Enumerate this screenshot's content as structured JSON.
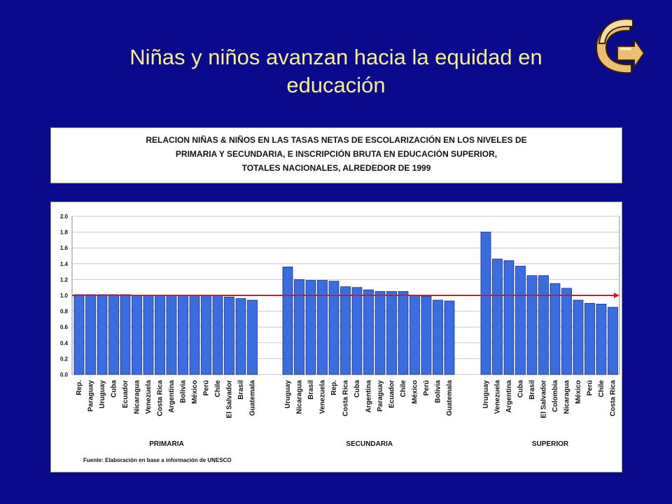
{
  "slide": {
    "title_line1": "Niñas y niños avanzan hacia la equidad en",
    "title_line2": "educación",
    "title_color": "#f7f08a",
    "background": "#0a0a8c",
    "logo_icon": "curved-arrow-logo-icon"
  },
  "chart_title": {
    "line1": "RELACION NIÑAS & NIÑOS EN LAS TASAS NETAS DE ESCOLARIZACIÓN EN LOS NIVELES DE",
    "line2": "PRIMARIA Y SECUNDARIA, E INSCRIPCIÓN BRUTA EN EDUCACIÓN SUPERIOR,",
    "line3": "TOTALES NACIONALES, ALREDEDOR DE 1999"
  },
  "chart_data": {
    "type": "bar",
    "title": "RELACION NIÑAS & NIÑOS EN LAS TASAS NETAS DE ESCOLARIZACIÓN EN LOS NIVELES DE PRIMARIA Y SECUNDARIA, E INSCRIPCIÓN BRUTA EN EDUCACIÓN SUPERIOR, TOTALES NACIONALES, ALREDEDOR DE 1999",
    "ylim": [
      0,
      2.0
    ],
    "yticks": [
      "0.0",
      "0.2",
      "0.4",
      "0.6",
      "0.8",
      "1.0",
      "1.2",
      "1.4",
      "1.6",
      "1.8",
      "2.0"
    ],
    "grid": true,
    "bar_color": "#3a6ee0",
    "reference_line": {
      "value": 1.0,
      "color": "#e81010"
    },
    "groups": [
      {
        "name": "PRIMARIA",
        "categories": [
          "Rep.",
          "Paraguay",
          "Uruguay",
          "Cuba",
          "Ecuador",
          "Nicaragua",
          "Venezuela",
          "Costa Rica",
          "Argentina",
          "Bolivia",
          "México",
          "Perú",
          "Chile",
          "El Salvador",
          "Brasil",
          "Guatemala"
        ],
        "values": [
          1.01,
          1.01,
          1.01,
          1.01,
          1.01,
          1.0,
          1.0,
          1.0,
          1.0,
          1.0,
          1.0,
          1.0,
          1.0,
          0.98,
          0.96,
          0.94
        ]
      },
      {
        "name": "SECUNDARIA",
        "categories": [
          "Uruguay",
          "Nicaragua",
          "Brasil",
          "Venezuela",
          "Rep.",
          "Costa Rica",
          "Cuba",
          "Argentina",
          "Paraguay",
          "Ecuador",
          "Chile",
          "México",
          "Perú",
          "Bolivia",
          "Guatemala"
        ],
        "values": [
          1.36,
          1.2,
          1.19,
          1.19,
          1.18,
          1.11,
          1.1,
          1.07,
          1.05,
          1.05,
          1.05,
          1.0,
          0.99,
          0.94,
          0.93
        ]
      },
      {
        "name": "SUPERIOR",
        "categories": [
          "Uruguay",
          "Venezuela",
          "Argentina",
          "Cuba",
          "Brasil",
          "El Salvador",
          "Colombia",
          "Nicaragua",
          "México",
          "Perú",
          "Chile",
          "Costa Rica"
        ],
        "values": [
          1.8,
          1.46,
          1.44,
          1.37,
          1.25,
          1.25,
          1.15,
          1.09,
          0.94,
          0.9,
          0.89,
          0.85
        ]
      }
    ],
    "source": "Fuente: Elaboración en base a información de UNESCO"
  }
}
